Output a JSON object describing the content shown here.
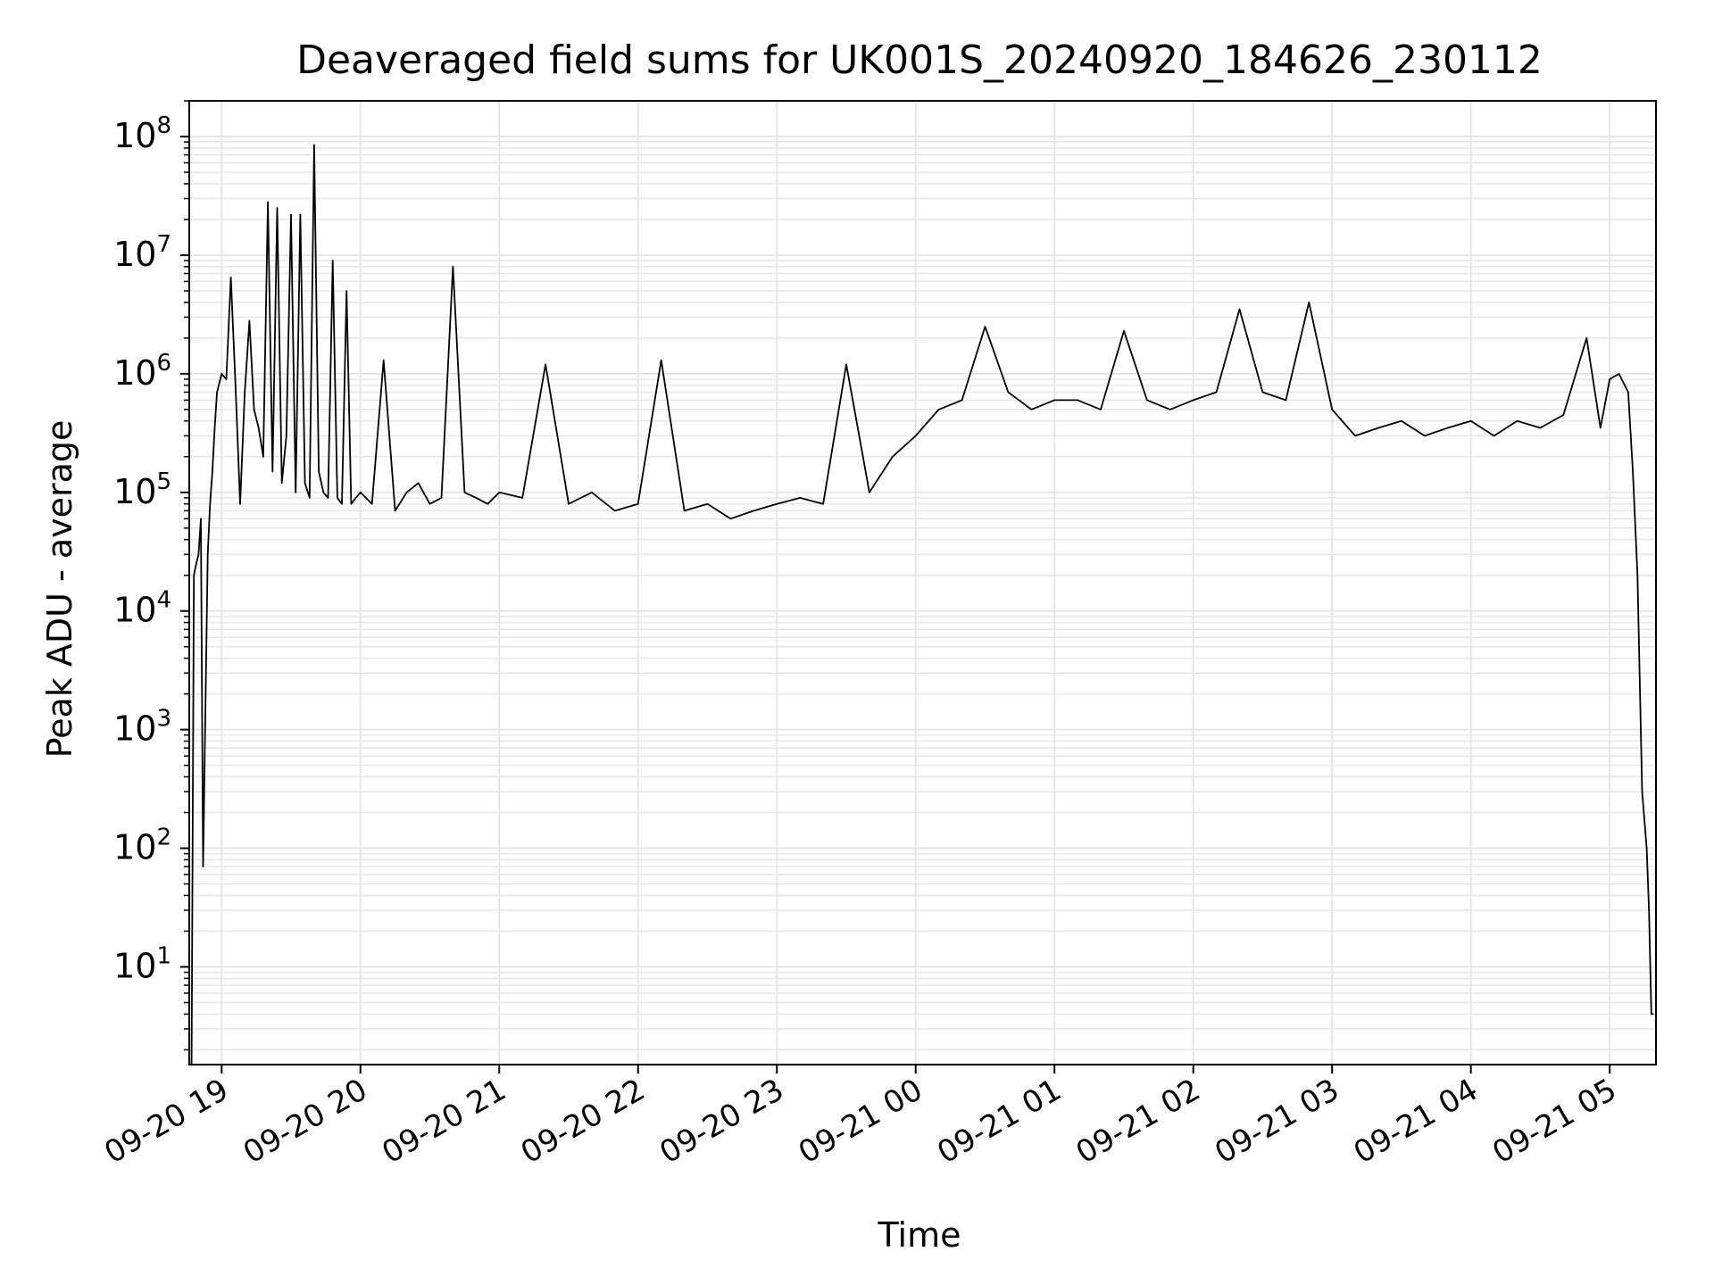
{
  "chart_data": {
    "type": "line",
    "title": "Deaveraged field sums for UK001S_20240920_184626_230112",
    "xlabel": "Time",
    "ylabel": "Peak ADU - average",
    "y_scale": "log",
    "ylim": [
      1.5,
      200000000
    ],
    "xlim": [
      "2024-09-20 18:46",
      "2024-09-21 05:20"
    ],
    "grid": true,
    "grid_color": "#e6e6e6",
    "line_color": "#000000",
    "x_ticks": [
      "09-20 19",
      "09-20 20",
      "09-20 21",
      "09-20 22",
      "09-20 23",
      "09-21 00",
      "09-21 01",
      "09-21 02",
      "09-21 03",
      "09-21 04",
      "09-21 05"
    ],
    "x_tick_times": [
      "2024-09-20 19:00",
      "2024-09-20 20:00",
      "2024-09-20 21:00",
      "2024-09-20 22:00",
      "2024-09-20 23:00",
      "2024-09-21 00:00",
      "2024-09-21 01:00",
      "2024-09-21 02:00",
      "2024-09-21 03:00",
      "2024-09-21 04:00",
      "2024-09-21 05:00"
    ],
    "y_ticks": [
      {
        "value": 10,
        "base": "10",
        "exp": "1"
      },
      {
        "value": 100,
        "base": "10",
        "exp": "2"
      },
      {
        "value": 1000,
        "base": "10",
        "exp": "3"
      },
      {
        "value": 10000,
        "base": "10",
        "exp": "4"
      },
      {
        "value": 100000,
        "base": "10",
        "exp": "5"
      },
      {
        "value": 1000000,
        "base": "10",
        "exp": "6"
      },
      {
        "value": 10000000,
        "base": "10",
        "exp": "7"
      },
      {
        "value": 100000000,
        "base": "10",
        "exp": "8"
      }
    ],
    "series": [
      {
        "x": [
          "2024-09-20 18:47",
          "2024-09-20 18:48",
          "2024-09-20 18:49",
          "2024-09-20 18:50",
          "2024-09-20 18:51",
          "2024-09-20 18:52",
          "2024-09-20 18:54",
          "2024-09-20 18:55",
          "2024-09-20 18:56",
          "2024-09-20 18:57",
          "2024-09-20 18:58",
          "2024-09-20 19:00",
          "2024-09-20 19:02",
          "2024-09-20 19:04",
          "2024-09-20 19:06",
          "2024-09-20 19:08",
          "2024-09-20 19:10",
          "2024-09-20 19:12",
          "2024-09-20 19:14",
          "2024-09-20 19:16",
          "2024-09-20 19:18",
          "2024-09-20 19:20",
          "2024-09-20 19:22",
          "2024-09-20 19:24",
          "2024-09-20 19:26",
          "2024-09-20 19:28",
          "2024-09-20 19:30",
          "2024-09-20 19:32",
          "2024-09-20 19:34",
          "2024-09-20 19:36",
          "2024-09-20 19:38",
          "2024-09-20 19:40",
          "2024-09-20 19:42",
          "2024-09-20 19:44",
          "2024-09-20 19:46",
          "2024-09-20 19:48",
          "2024-09-20 19:50",
          "2024-09-20 19:52",
          "2024-09-20 19:54",
          "2024-09-20 19:56",
          "2024-09-20 19:58",
          "2024-09-20 20:00",
          "2024-09-20 20:05",
          "2024-09-20 20:10",
          "2024-09-20 20:15",
          "2024-09-20 20:20",
          "2024-09-20 20:25",
          "2024-09-20 20:30",
          "2024-09-20 20:35",
          "2024-09-20 20:40",
          "2024-09-20 20:45",
          "2024-09-20 20:50",
          "2024-09-20 20:55",
          "2024-09-20 21:00",
          "2024-09-20 21:10",
          "2024-09-20 21:20",
          "2024-09-20 21:30",
          "2024-09-20 21:40",
          "2024-09-20 21:50",
          "2024-09-20 22:00",
          "2024-09-20 22:10",
          "2024-09-20 22:20",
          "2024-09-20 22:30",
          "2024-09-20 22:40",
          "2024-09-20 22:50",
          "2024-09-20 23:00",
          "2024-09-20 23:10",
          "2024-09-20 23:20",
          "2024-09-20 23:30",
          "2024-09-20 23:40",
          "2024-09-20 23:50",
          "2024-09-21 00:00",
          "2024-09-21 00:10",
          "2024-09-21 00:20",
          "2024-09-21 00:30",
          "2024-09-21 00:40",
          "2024-09-21 00:50",
          "2024-09-21 01:00",
          "2024-09-21 01:10",
          "2024-09-21 01:20",
          "2024-09-21 01:30",
          "2024-09-21 01:40",
          "2024-09-21 01:50",
          "2024-09-21 02:00",
          "2024-09-21 02:10",
          "2024-09-21 02:20",
          "2024-09-21 02:30",
          "2024-09-21 02:40",
          "2024-09-21 02:50",
          "2024-09-21 03:00",
          "2024-09-21 03:10",
          "2024-09-21 03:20",
          "2024-09-21 03:30",
          "2024-09-21 03:40",
          "2024-09-21 03:50",
          "2024-09-21 04:00",
          "2024-09-21 04:10",
          "2024-09-21 04:20",
          "2024-09-21 04:30",
          "2024-09-21 04:40",
          "2024-09-21 04:50",
          "2024-09-21 04:56",
          "2024-09-21 05:00",
          "2024-09-21 05:04",
          "2024-09-21 05:08",
          "2024-09-21 05:10",
          "2024-09-21 05:12",
          "2024-09-21 05:14",
          "2024-09-21 05:16",
          "2024-09-21 05:17",
          "2024-09-21 05:18",
          "2024-09-21 05:19"
        ],
        "y": [
          1.5,
          20000,
          25000,
          30000,
          60000,
          70,
          30000,
          80000,
          150000,
          350000,
          700000,
          1000000,
          900000,
          6500000,
          800000,
          80000,
          700000,
          2800000,
          500000,
          350000,
          200000,
          28000000,
          150000,
          25000000,
          120000,
          300000,
          22000000,
          100000,
          22000000,
          120000,
          90000,
          85000000,
          150000,
          100000,
          90000,
          9000000,
          90000,
          80000,
          5000000,
          80000,
          90000,
          100000,
          80000,
          1300000,
          70000,
          100000,
          120000,
          80000,
          90000,
          8000000,
          100000,
          90000,
          80000,
          100000,
          90000,
          1200000,
          80000,
          100000,
          70000,
          80000,
          1300000,
          70000,
          80000,
          60000,
          70000,
          80000,
          90000,
          80000,
          1200000,
          100000,
          200000,
          300000,
          500000,
          600000,
          2500000,
          700000,
          500000,
          600000,
          600000,
          500000,
          2300000,
          600000,
          500000,
          600000,
          700000,
          3500000,
          700000,
          600000,
          4000000,
          500000,
          300000,
          350000,
          400000,
          300000,
          350000,
          400000,
          300000,
          400000,
          350000,
          450000,
          2000000,
          350000,
          900000,
          1000000,
          700000,
          150000,
          20000,
          300,
          100,
          30,
          4,
          4
        ]
      }
    ]
  }
}
